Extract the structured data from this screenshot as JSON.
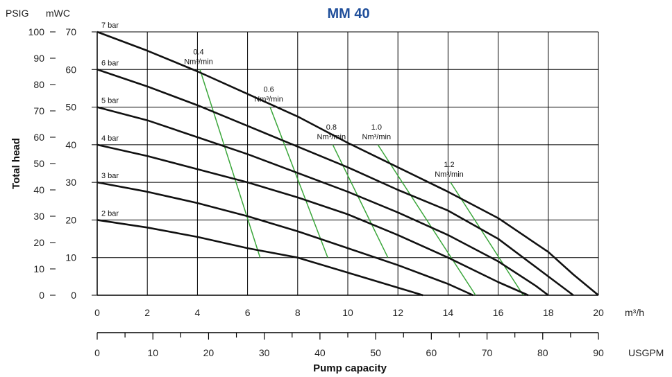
{
  "chart_data": {
    "type": "line",
    "title": "MM 40",
    "xlabel": "Pump capacity",
    "ylabel": "Total head",
    "x_unit": "m³/h",
    "x2_unit": "USGPM",
    "y_unit": "mWC",
    "y2_unit": "PSIG",
    "xlim": [
      0,
      20
    ],
    "ylim": [
      0,
      70
    ],
    "x2lim": [
      0,
      90
    ],
    "y2lim": [
      0,
      100
    ],
    "x_ticks": [
      "0",
      "2",
      "4",
      "6",
      "8",
      "10",
      "12",
      "14",
      "16",
      "18",
      "20"
    ],
    "x2_ticks": [
      "0",
      "10",
      "20",
      "30",
      "40",
      "50",
      "60",
      "70",
      "80",
      "90"
    ],
    "y_ticks": [
      "0",
      "10",
      "20",
      "30",
      "40",
      "50",
      "60",
      "70"
    ],
    "y2_ticks": [
      "0",
      "10",
      "20",
      "30",
      "40",
      "50",
      "60",
      "70",
      "80",
      "90",
      "100"
    ],
    "grid": true,
    "pressure_series": [
      {
        "name": "7 bar",
        "x": [
          0,
          2,
          4,
          6,
          8,
          10,
          12,
          14,
          16,
          18,
          19,
          20
        ],
        "y": [
          70,
          65,
          59.5,
          53.5,
          47.5,
          40.5,
          34,
          27.5,
          20.5,
          11.5,
          5.5,
          0
        ]
      },
      {
        "name": "6 bar",
        "x": [
          0,
          2,
          4,
          6,
          8,
          10,
          12,
          14,
          16,
          18,
          19
        ],
        "y": [
          60,
          55.5,
          50.5,
          45,
          39.5,
          34,
          28,
          22.5,
          15,
          5,
          0
        ]
      },
      {
        "name": "5 bar",
        "x": [
          0,
          2,
          4,
          6,
          8,
          10,
          12,
          14,
          16,
          17.5,
          18
        ],
        "y": [
          50,
          46.5,
          42,
          37.5,
          32.5,
          27.5,
          22,
          16,
          9,
          2.5,
          0
        ]
      },
      {
        "name": "4 bar",
        "x": [
          0,
          2,
          4,
          6,
          8,
          10,
          12,
          14,
          16,
          17.2
        ],
        "y": [
          40,
          37,
          33.5,
          30,
          26,
          21.5,
          16,
          10,
          3.5,
          0
        ]
      },
      {
        "name": "3 bar",
        "x": [
          0,
          2,
          4,
          6,
          8,
          10,
          12,
          14,
          15
        ],
        "y": [
          30,
          27.5,
          24.5,
          21,
          17,
          12.5,
          8,
          3,
          0
        ]
      },
      {
        "name": "2 bar",
        "x": [
          0,
          2,
          4,
          6,
          8,
          10,
          12,
          13
        ],
        "y": [
          20,
          18,
          15.5,
          12.5,
          10,
          6,
          2,
          0
        ]
      }
    ],
    "air_series": [
      {
        "value": "0.4",
        "unit": "Nm³/min",
        "x": [
          4.1,
          6.5
        ],
        "y": [
          60,
          10
        ]
      },
      {
        "value": "0.6",
        "unit": "Nm³/min",
        "x": [
          6.9,
          9.2
        ],
        "y": [
          50,
          10
        ]
      },
      {
        "value": "0.8",
        "unit": "Nm³/min",
        "x": [
          9.4,
          11.6
        ],
        "y": [
          40,
          10
        ]
      },
      {
        "value": "1.0",
        "unit": "Nm³/min",
        "x": [
          11.2,
          15.1
        ],
        "y": [
          40,
          0
        ]
      },
      {
        "value": "1.2",
        "unit": "Nm³/min",
        "x": [
          14.1,
          17.0
        ],
        "y": [
          30,
          0
        ]
      }
    ],
    "colors": {
      "pressure": "#111111",
      "air": "#3aa63a",
      "grid": "#000000",
      "title": "#1f4e9a"
    }
  }
}
